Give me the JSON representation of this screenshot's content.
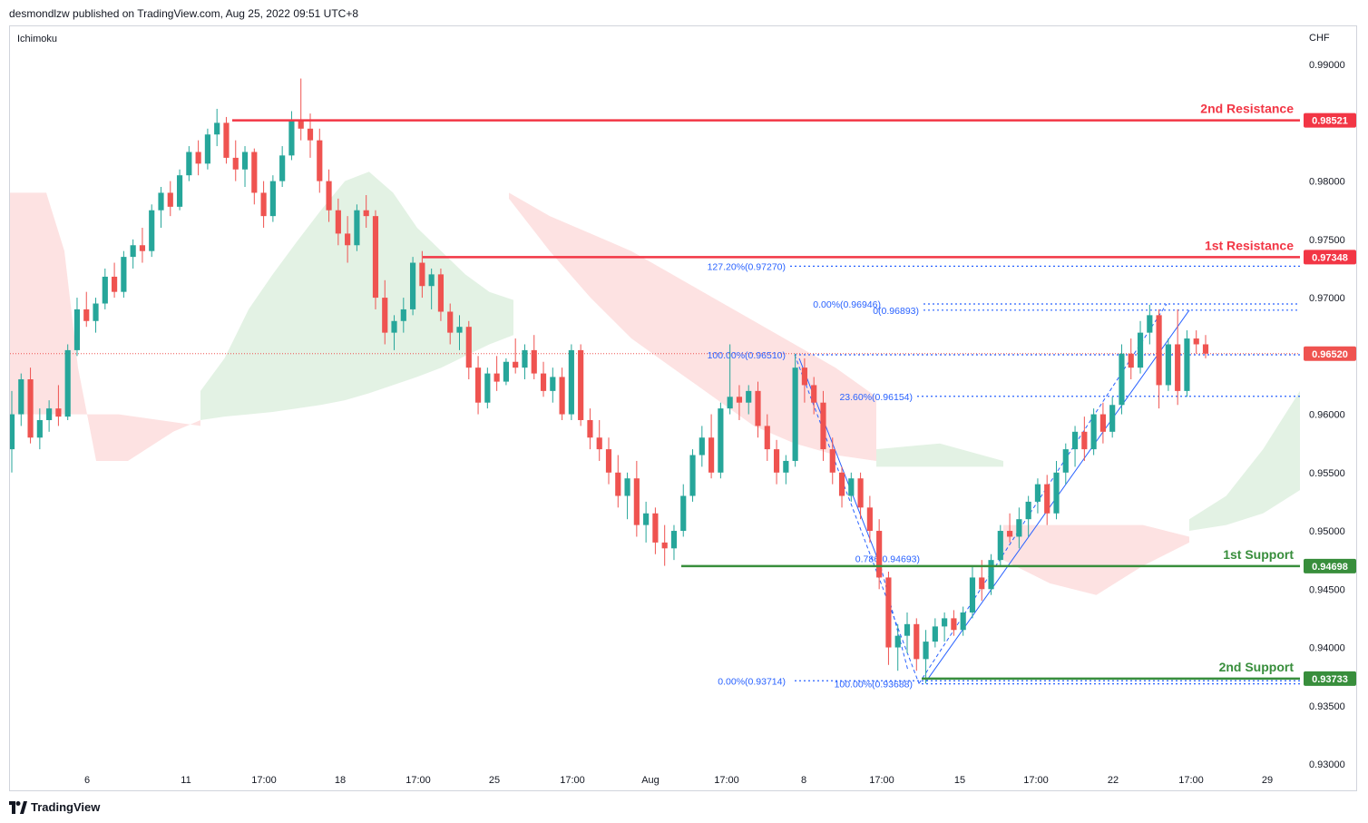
{
  "header": {
    "publisher_line": "desmondlzw published on TradingView.com, Aug 25, 2022 09:51 UTC+8"
  },
  "footer": {
    "brand": "TradingView"
  },
  "colors": {
    "up": "#26a69a",
    "down": "#ef5350",
    "resistance": "#f23645",
    "support": "#388e3c",
    "fib": "#2962ff",
    "cloud_bull": "#e3f2e4",
    "cloud_bear": "#fde2e2",
    "axis_text": "#131722",
    "grid_border": "#d1d4dc"
  },
  "chart_data": {
    "type": "candlestick",
    "symbol_currency": "CHF",
    "indicator": "Ichimoku",
    "ylim": [
      0.93,
      0.9925
    ],
    "y_ticks": [
      "0.99000",
      "0.98500",
      "0.98000",
      "0.97500",
      "0.97000",
      "0.96500",
      "0.96000",
      "0.95500",
      "0.95000",
      "0.94500",
      "0.94000",
      "0.93500",
      "0.93000"
    ],
    "x_ticks": [
      "6",
      "11",
      "17:00",
      "18",
      "17:00",
      "25",
      "17:00",
      "Aug",
      "17:00",
      "8",
      "17:00",
      "15",
      "17:00",
      "22",
      "17:00",
      "29"
    ],
    "last_price": "0.96520",
    "levels": [
      {
        "label": "2nd Resistance",
        "value": 0.98521,
        "tag": "0.98521",
        "kind": "resistance"
      },
      {
        "label": "1st Resistance",
        "value": 0.97348,
        "tag": "0.97348",
        "kind": "resistance"
      },
      {
        "label": "1st Support",
        "value": 0.94698,
        "tag": "0.94698",
        "kind": "support"
      },
      {
        "label": "2nd Support",
        "value": 0.93733,
        "tag": "0.93733",
        "kind": "support"
      }
    ],
    "fib_labels": [
      {
        "text": "127.20%(0.97270)",
        "value": 0.9727
      },
      {
        "text": "0.00%(0.96946)",
        "value": 0.96946
      },
      {
        "text": "0(0.96893)",
        "value": 0.96893
      },
      {
        "text": "100.00%(0.96510)",
        "value": 0.9651
      },
      {
        "text": "23.60%(0.96154)",
        "value": 0.96154
      },
      {
        "text": "0.786(0.94693)",
        "value": 0.94693
      },
      {
        "text": "100.00%(0.93688)",
        "value": 0.93688
      },
      {
        "text": "0.00%(0.93714)",
        "value": 0.93714
      }
    ],
    "candles": [
      [
        0.957,
        0.962,
        0.955,
        0.96
      ],
      [
        0.96,
        0.9635,
        0.959,
        0.963
      ],
      [
        0.963,
        0.964,
        0.9575,
        0.958
      ],
      [
        0.958,
        0.9605,
        0.957,
        0.9595
      ],
      [
        0.9595,
        0.9612,
        0.9585,
        0.9605
      ],
      [
        0.9605,
        0.9625,
        0.959,
        0.9598
      ],
      [
        0.9598,
        0.966,
        0.9595,
        0.9655
      ],
      [
        0.9655,
        0.97,
        0.965,
        0.969
      ],
      [
        0.969,
        0.9705,
        0.9675,
        0.968
      ],
      [
        0.968,
        0.97,
        0.967,
        0.9695
      ],
      [
        0.9695,
        0.9725,
        0.969,
        0.9718
      ],
      [
        0.9718,
        0.973,
        0.97,
        0.9705
      ],
      [
        0.9705,
        0.974,
        0.97,
        0.9735
      ],
      [
        0.9735,
        0.975,
        0.9725,
        0.9745
      ],
      [
        0.9745,
        0.976,
        0.973,
        0.974
      ],
      [
        0.974,
        0.978,
        0.9735,
        0.9775
      ],
      [
        0.9775,
        0.9795,
        0.976,
        0.979
      ],
      [
        0.979,
        0.98,
        0.977,
        0.9778
      ],
      [
        0.9778,
        0.981,
        0.9775,
        0.9805
      ],
      [
        0.9805,
        0.983,
        0.98,
        0.9825
      ],
      [
        0.9825,
        0.9835,
        0.9805,
        0.9815
      ],
      [
        0.9815,
        0.9845,
        0.981,
        0.984
      ],
      [
        0.984,
        0.9862,
        0.983,
        0.985
      ],
      [
        0.985,
        0.9855,
        0.9815,
        0.982
      ],
      [
        0.982,
        0.9835,
        0.98,
        0.981
      ],
      [
        0.981,
        0.983,
        0.9795,
        0.9825
      ],
      [
        0.9825,
        0.9828,
        0.978,
        0.979
      ],
      [
        0.979,
        0.98,
        0.976,
        0.977
      ],
      [
        0.977,
        0.9805,
        0.9765,
        0.98
      ],
      [
        0.98,
        0.983,
        0.9795,
        0.9822
      ],
      [
        0.9822,
        0.986,
        0.9818,
        0.9852
      ],
      [
        0.9852,
        0.9888,
        0.9835,
        0.9845
      ],
      [
        0.9845,
        0.9858,
        0.982,
        0.9835
      ],
      [
        0.9835,
        0.9845,
        0.979,
        0.98
      ],
      [
        0.98,
        0.981,
        0.9765,
        0.9775
      ],
      [
        0.9775,
        0.9785,
        0.9745,
        0.9755
      ],
      [
        0.9755,
        0.977,
        0.973,
        0.9745
      ],
      [
        0.9745,
        0.978,
        0.974,
        0.9775
      ],
      [
        0.9775,
        0.9788,
        0.976,
        0.977
      ],
      [
        0.977,
        0.9775,
        0.969,
        0.97
      ],
      [
        0.97,
        0.9715,
        0.966,
        0.967
      ],
      [
        0.967,
        0.9685,
        0.9655,
        0.968
      ],
      [
        0.968,
        0.97,
        0.967,
        0.969
      ],
      [
        0.969,
        0.9735,
        0.9685,
        0.973
      ],
      [
        0.973,
        0.974,
        0.97,
        0.971
      ],
      [
        0.971,
        0.9725,
        0.969,
        0.972
      ],
      [
        0.972,
        0.9725,
        0.968,
        0.9688
      ],
      [
        0.9688,
        0.9695,
        0.966,
        0.967
      ],
      [
        0.967,
        0.9685,
        0.9655,
        0.9675
      ],
      [
        0.9675,
        0.968,
        0.963,
        0.964
      ],
      [
        0.964,
        0.965,
        0.96,
        0.961
      ],
      [
        0.961,
        0.964,
        0.9605,
        0.9635
      ],
      [
        0.9635,
        0.965,
        0.962,
        0.9628
      ],
      [
        0.9628,
        0.9648,
        0.9625,
        0.9645
      ],
      [
        0.9645,
        0.9665,
        0.9635,
        0.964
      ],
      [
        0.964,
        0.966,
        0.963,
        0.9655
      ],
      [
        0.9655,
        0.9668,
        0.963,
        0.9635
      ],
      [
        0.9635,
        0.9645,
        0.9615,
        0.962
      ],
      [
        0.962,
        0.964,
        0.961,
        0.9632
      ],
      [
        0.9632,
        0.964,
        0.9595,
        0.96
      ],
      [
        0.96,
        0.966,
        0.9595,
        0.9655
      ],
      [
        0.9655,
        0.966,
        0.959,
        0.9595
      ],
      [
        0.9595,
        0.9605,
        0.957,
        0.958
      ],
      [
        0.958,
        0.9595,
        0.956,
        0.957
      ],
      [
        0.957,
        0.958,
        0.954,
        0.955
      ],
      [
        0.955,
        0.9565,
        0.952,
        0.953
      ],
      [
        0.953,
        0.955,
        0.951,
        0.9545
      ],
      [
        0.9545,
        0.956,
        0.9495,
        0.9505
      ],
      [
        0.9505,
        0.9525,
        0.949,
        0.9515
      ],
      [
        0.9515,
        0.952,
        0.948,
        0.949
      ],
      [
        0.949,
        0.9505,
        0.947,
        0.9485
      ],
      [
        0.9485,
        0.9505,
        0.9475,
        0.95
      ],
      [
        0.95,
        0.954,
        0.9495,
        0.953
      ],
      [
        0.953,
        0.957,
        0.9525,
        0.9565
      ],
      [
        0.9565,
        0.959,
        0.9555,
        0.958
      ],
      [
        0.958,
        0.96,
        0.9545,
        0.955
      ],
      [
        0.955,
        0.961,
        0.9545,
        0.9605
      ],
      [
        0.9605,
        0.966,
        0.96,
        0.9615
      ],
      [
        0.9615,
        0.9625,
        0.9595,
        0.961
      ],
      [
        0.961,
        0.9625,
        0.96,
        0.962
      ],
      [
        0.962,
        0.9628,
        0.958,
        0.959
      ],
      [
        0.959,
        0.96,
        0.956,
        0.957
      ],
      [
        0.957,
        0.9578,
        0.954,
        0.955
      ],
      [
        0.955,
        0.9565,
        0.954,
        0.956
      ],
      [
        0.956,
        0.9652,
        0.9555,
        0.964
      ],
      [
        0.964,
        0.9648,
        0.961,
        0.9625
      ],
      [
        0.9625,
        0.9632,
        0.96,
        0.961
      ],
      [
        0.961,
        0.962,
        0.956,
        0.957
      ],
      [
        0.957,
        0.958,
        0.954,
        0.955
      ],
      [
        0.955,
        0.9555,
        0.952,
        0.953
      ],
      [
        0.953,
        0.955,
        0.9525,
        0.9545
      ],
      [
        0.9545,
        0.955,
        0.951,
        0.952
      ],
      [
        0.952,
        0.953,
        0.949,
        0.95
      ],
      [
        0.95,
        0.951,
        0.945,
        0.946
      ],
      [
        0.946,
        0.9465,
        0.9385,
        0.94
      ],
      [
        0.94,
        0.942,
        0.938,
        0.941
      ],
      [
        0.941,
        0.943,
        0.9395,
        0.942
      ],
      [
        0.942,
        0.9425,
        0.938,
        0.939
      ],
      [
        0.939,
        0.9415,
        0.9369,
        0.9405
      ],
      [
        0.9405,
        0.9425,
        0.94,
        0.9418
      ],
      [
        0.9418,
        0.943,
        0.9405,
        0.9425
      ],
      [
        0.9425,
        0.9432,
        0.941,
        0.9415
      ],
      [
        0.9415,
        0.9435,
        0.941,
        0.943
      ],
      [
        0.943,
        0.947,
        0.9425,
        0.946
      ],
      [
        0.946,
        0.9475,
        0.944,
        0.945
      ],
      [
        0.945,
        0.948,
        0.9445,
        0.9475
      ],
      [
        0.9475,
        0.9505,
        0.947,
        0.95
      ],
      [
        0.95,
        0.9515,
        0.949,
        0.9495
      ],
      [
        0.9495,
        0.952,
        0.9485,
        0.951
      ],
      [
        0.951,
        0.953,
        0.9495,
        0.9525
      ],
      [
        0.9525,
        0.9545,
        0.9515,
        0.954
      ],
      [
        0.954,
        0.9548,
        0.9505,
        0.9515
      ],
      [
        0.9515,
        0.956,
        0.951,
        0.955
      ],
      [
        0.955,
        0.9575,
        0.954,
        0.957
      ],
      [
        0.957,
        0.959,
        0.9555,
        0.9585
      ],
      [
        0.9585,
        0.9598,
        0.956,
        0.957
      ],
      [
        0.957,
        0.9605,
        0.9565,
        0.96
      ],
      [
        0.96,
        0.961,
        0.9575,
        0.9585
      ],
      [
        0.9585,
        0.9615,
        0.958,
        0.9608
      ],
      [
        0.9608,
        0.966,
        0.96,
        0.9652
      ],
      [
        0.9652,
        0.9665,
        0.963,
        0.964
      ],
      [
        0.964,
        0.968,
        0.9635,
        0.967
      ],
      [
        0.967,
        0.9694,
        0.966,
        0.9685
      ],
      [
        0.9685,
        0.969,
        0.9605,
        0.9625
      ],
      [
        0.9625,
        0.9665,
        0.962,
        0.966
      ],
      [
        0.966,
        0.969,
        0.9608,
        0.962
      ],
      [
        0.962,
        0.9672,
        0.9615,
        0.9665
      ],
      [
        0.9665,
        0.9672,
        0.9652,
        0.966
      ],
      [
        0.966,
        0.9668,
        0.9648,
        0.9652
      ]
    ],
    "cloud": {
      "bull": [
        [
          0.9595,
          0.962
        ],
        [
          0.9598,
          0.9648
        ],
        [
          0.96,
          0.969
        ],
        [
          0.9602,
          0.972
        ],
        [
          0.9605,
          0.9748
        ],
        [
          0.9608,
          0.9775
        ],
        [
          0.9612,
          0.98
        ],
        [
          0.9618,
          0.9808
        ],
        [
          0.9625,
          0.979
        ],
        [
          0.9632,
          0.976
        ],
        [
          0.964,
          0.974
        ],
        [
          0.965,
          0.972
        ],
        [
          0.966,
          0.9705
        ],
        [
          0.9668,
          0.9698
        ]
      ],
      "bear": [
        [
          0.979,
          0.9785
        ],
        [
          0.977,
          0.974
        ],
        [
          0.9755,
          0.97
        ],
        [
          0.974,
          0.9665
        ],
        [
          0.972,
          0.964
        ],
        [
          0.97,
          0.9615
        ],
        [
          0.968,
          0.959
        ],
        [
          0.966,
          0.9575
        ],
        [
          0.964,
          0.9565
        ],
        [
          0.9615,
          0.956
        ]
      ],
      "bull2": [
        [
          0.9555,
          0.957
        ],
        [
          0.9555,
          0.9575
        ],
        [
          0.9555,
          0.956
        ]
      ],
      "bear2": [
        [
          0.9505,
          0.9475
        ],
        [
          0.9505,
          0.9455
        ],
        [
          0.9505,
          0.9445
        ],
        [
          0.9505,
          0.947
        ],
        [
          0.9495,
          0.949
        ]
      ],
      "bull3": [
        [
          0.951,
          0.95
        ],
        [
          0.953,
          0.9505
        ],
        [
          0.957,
          0.9515
        ],
        [
          0.962,
          0.9535
        ]
      ]
    }
  }
}
